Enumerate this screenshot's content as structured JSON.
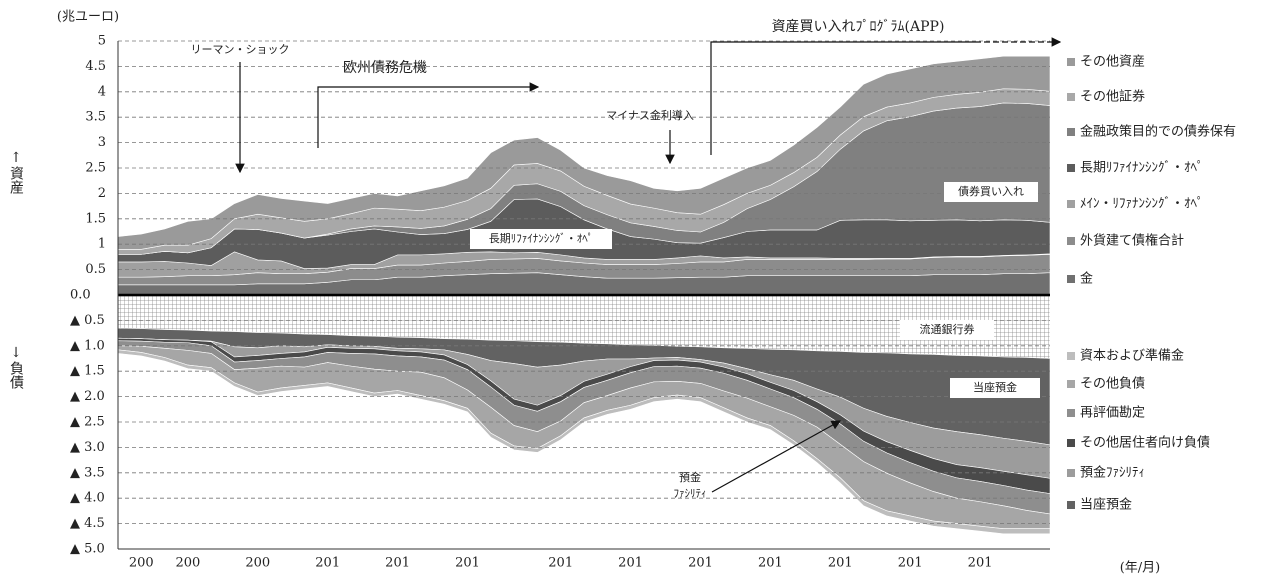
{
  "chart_data": {
    "type": "stacked_area",
    "unit_label": "(兆ユーロ)",
    "x_label": "(年/月)",
    "assets_label": "↑資産",
    "liabilities_label": "↓負債",
    "categories": [
      null,
      "200",
      null,
      "200",
      null,
      null,
      "200",
      null,
      null,
      "201",
      null,
      null,
      "201",
      null,
      null,
      "201",
      null,
      null,
      null,
      "201",
      null,
      null,
      "201",
      null,
      null,
      "201",
      null,
      null,
      "201",
      null,
      null,
      "201",
      null,
      null,
      "201",
      null,
      null,
      "201",
      null,
      null,
      null
    ],
    "ylim": [
      -5,
      5
    ],
    "yticks": [
      5,
      4.5,
      4,
      3.5,
      3,
      2.5,
      2,
      1.5,
      1,
      0.5,
      {
        "value": 0,
        "label": "0.0"
      },
      {
        "value": -0.5,
        "label": "▲ 0.5"
      },
      {
        "value": -1,
        "label": "▲ 1.0"
      },
      {
        "value": -1.5,
        "label": "▲ 1.5"
      },
      {
        "value": -2,
        "label": "▲ 2.0"
      },
      {
        "value": -2.5,
        "label": "▲ 2.5"
      },
      {
        "value": -3,
        "label": "▲ 3.0"
      },
      {
        "value": -3.5,
        "label": "▲ 3.5"
      },
      {
        "value": -4,
        "label": "▲ 4.0"
      },
      {
        "value": -4.5,
        "label": "▲ 4.5"
      },
      {
        "value": -5,
        "label": "▲ 5.0"
      }
    ],
    "grid": true,
    "series": [
      {
        "name": "金",
        "color": "#707070",
        "values": [
          0.2,
          0.2,
          0.2,
          0.2,
          0.2,
          0.2,
          0.22,
          0.22,
          0.22,
          0.25,
          0.3,
          0.3,
          0.35,
          0.35,
          0.38,
          0.4,
          0.42,
          0.43,
          0.44,
          0.4,
          0.36,
          0.33,
          0.33,
          0.33,
          0.34,
          0.35,
          0.35,
          0.38,
          0.38,
          0.38,
          0.38,
          0.38,
          0.38,
          0.38,
          0.38,
          0.4,
          0.4,
          0.4,
          0.42,
          0.42,
          0.44
        ]
      },
      {
        "name": "外貨建て債権合計",
        "color": "#8c8c8c",
        "values": [
          0.15,
          0.15,
          0.16,
          0.18,
          0.18,
          0.2,
          0.22,
          0.2,
          0.2,
          0.2,
          0.22,
          0.22,
          0.24,
          0.24,
          0.25,
          0.26,
          0.28,
          0.28,
          0.28,
          0.27,
          0.27,
          0.27,
          0.27,
          0.27,
          0.28,
          0.3,
          0.3,
          0.32,
          0.32,
          0.32,
          0.32,
          0.32,
          0.32,
          0.33,
          0.33,
          0.34,
          0.35,
          0.35,
          0.35,
          0.36,
          0.36
        ]
      },
      {
        "name": "ﾒｲﾝ・ﾘﾌｧﾅﾝｼﾝｸﾞ・ｵﾍﾟ",
        "color": "#a0a0a0",
        "values": [
          0.3,
          0.3,
          0.3,
          0.25,
          0.2,
          0.45,
          0.25,
          0.25,
          0.1,
          0.08,
          0.08,
          0.08,
          0.2,
          0.2,
          0.18,
          0.18,
          0.15,
          0.12,
          0.12,
          0.12,
          0.1,
          0.1,
          0.1,
          0.1,
          0.11,
          0.12,
          0.08,
          0.05,
          0.03,
          0.03,
          0.03,
          0.02,
          0.02,
          0.01,
          0.01,
          0.01,
          0.01,
          0.01,
          0.01,
          0.01,
          0.01
        ]
      },
      {
        "name": "長期ﾘﾌｧｲﾅﾝｼﾝｸﾞ・ｵﾍﾟ",
        "color": "#5c5c5c",
        "values": [
          0.15,
          0.15,
          0.2,
          0.2,
          0.35,
          0.45,
          0.6,
          0.55,
          0.6,
          0.65,
          0.65,
          0.7,
          0.45,
          0.4,
          0.4,
          0.45,
          0.6,
          1.05,
          1.05,
          0.95,
          0.75,
          0.6,
          0.45,
          0.4,
          0.3,
          0.25,
          0.4,
          0.5,
          0.55,
          0.55,
          0.55,
          0.75,
          0.76,
          0.76,
          0.74,
          0.72,
          0.72,
          0.7,
          0.7,
          0.68,
          0.62
        ]
      },
      {
        "name": "金融政策目的での債券保有",
        "color": "#808080",
        "values": [
          0,
          0,
          0,
          0,
          0,
          0,
          0,
          0,
          0,
          0.02,
          0.05,
          0.06,
          0.1,
          0.12,
          0.15,
          0.2,
          0.25,
          0.28,
          0.3,
          0.3,
          0.28,
          0.28,
          0.27,
          0.25,
          0.24,
          0.22,
          0.3,
          0.45,
          0.6,
          0.85,
          1.15,
          1.4,
          1.75,
          1.95,
          2.05,
          2.15,
          2.2,
          2.25,
          2.3,
          2.3,
          2.3
        ]
      },
      {
        "name": "その他証券",
        "color": "#a8a8a8",
        "values": [
          0.1,
          0.1,
          0.12,
          0.15,
          0.18,
          0.2,
          0.3,
          0.3,
          0.33,
          0.3,
          0.3,
          0.35,
          0.35,
          0.35,
          0.37,
          0.37,
          0.4,
          0.4,
          0.4,
          0.4,
          0.38,
          0.38,
          0.37,
          0.36,
          0.35,
          0.35,
          0.35,
          0.3,
          0.28,
          0.28,
          0.28,
          0.28,
          0.28,
          0.27,
          0.27,
          0.27,
          0.27,
          0.28,
          0.28,
          0.28,
          0.28
        ]
      },
      {
        "name": "その他資産",
        "color": "#9a9a9a",
        "values": [
          0.25,
          0.3,
          0.32,
          0.47,
          0.39,
          0.3,
          0.39,
          0.38,
          0.4,
          0.3,
          0.3,
          0.29,
          0.26,
          0.39,
          0.42,
          0.44,
          0.7,
          0.49,
          0.51,
          0.41,
          0.36,
          0.39,
          0.46,
          0.39,
          0.43,
          0.51,
          0.52,
          0.5,
          0.49,
          0.54,
          0.59,
          0.55,
          0.64,
          0.65,
          0.67,
          0.66,
          0.65,
          0.66,
          0.64,
          0.65,
          0.69
        ]
      }
    ],
    "banknotes": {
      "name": "流通銀行券",
      "values": [
        -0.65,
        -0.66,
        -0.68,
        -0.69,
        -0.71,
        -0.72,
        -0.74,
        -0.75,
        -0.77,
        -0.78,
        -0.8,
        -0.81,
        -0.83,
        -0.84,
        -0.86,
        -0.87,
        -0.89,
        -0.9,
        -0.92,
        -0.93,
        -0.95,
        -0.96,
        -0.98,
        -0.99,
        -1.01,
        -1.02,
        -1.04,
        -1.05,
        -1.07,
        -1.08,
        -1.1,
        -1.11,
        -1.13,
        -1.14,
        -1.16,
        -1.17,
        -1.19,
        -1.2,
        -1.22,
        -1.23,
        -1.25
      ]
    },
    "liabilities": [
      {
        "name": "当座預金",
        "color": "#626262",
        "values": [
          -0.2,
          -0.2,
          -0.2,
          -0.2,
          -0.2,
          -0.3,
          -0.3,
          -0.25,
          -0.25,
          -0.2,
          -0.2,
          -0.2,
          -0.22,
          -0.22,
          -0.22,
          -0.3,
          -0.4,
          -0.45,
          -0.5,
          -0.45,
          -0.35,
          -0.3,
          -0.28,
          -0.25,
          -0.22,
          -0.25,
          -0.3,
          -0.4,
          -0.5,
          -0.6,
          -0.75,
          -0.9,
          -1.1,
          -1.25,
          -1.35,
          -1.45,
          -1.5,
          -1.55,
          -1.6,
          -1.65,
          -1.7
        ]
      },
      {
        "name": "預金ﾌｧｼﾘﾃｨ",
        "color": "#9c9c9c",
        "values": [
          0,
          0,
          0,
          0,
          -0.01,
          -0.2,
          -0.15,
          -0.15,
          -0.1,
          -0.05,
          -0.05,
          -0.05,
          -0.05,
          -0.06,
          -0.1,
          -0.2,
          -0.4,
          -0.7,
          -0.75,
          -0.6,
          -0.4,
          -0.3,
          -0.15,
          -0.05,
          -0.05,
          -0.05,
          -0.08,
          -0.1,
          -0.15,
          -0.2,
          -0.25,
          -0.35,
          -0.45,
          -0.5,
          -0.55,
          -0.6,
          -0.65,
          -0.65,
          -0.65,
          -0.66,
          -0.66
        ]
      },
      {
        "name": "その他居住者向け負債",
        "color": "#4a4a4a",
        "values": [
          -0.05,
          -0.05,
          -0.05,
          -0.05,
          -0.08,
          -0.1,
          -0.1,
          -0.1,
          -0.1,
          -0.1,
          -0.1,
          -0.1,
          -0.1,
          -0.1,
          -0.1,
          -0.1,
          -0.12,
          -0.12,
          -0.12,
          -0.12,
          -0.12,
          -0.12,
          -0.12,
          -0.12,
          -0.12,
          -0.12,
          -0.12,
          -0.13,
          -0.13,
          -0.14,
          -0.15,
          -0.18,
          -0.2,
          -0.22,
          -0.24,
          -0.25,
          -0.26,
          -0.27,
          -0.28,
          -0.3,
          -0.3
        ]
      },
      {
        "name": "再評価勘定",
        "color": "#8e8e8e",
        "values": [
          -0.1,
          -0.1,
          -0.12,
          -0.15,
          -0.15,
          -0.15,
          -0.15,
          -0.15,
          -0.2,
          -0.2,
          -0.25,
          -0.3,
          -0.3,
          -0.3,
          -0.35,
          -0.4,
          -0.4,
          -0.4,
          -0.4,
          -0.38,
          -0.3,
          -0.3,
          -0.3,
          -0.3,
          -0.3,
          -0.3,
          -0.35,
          -0.35,
          -0.35,
          -0.35,
          -0.35,
          -0.4,
          -0.4,
          -0.4,
          -0.4,
          -0.4,
          -0.4,
          -0.4,
          -0.4,
          -0.4,
          -0.4
        ]
      },
      {
        "name": "その他負債",
        "color": "#a6a6a6",
        "values": [
          -0.08,
          -0.12,
          -0.18,
          -0.29,
          -0.28,
          -0.26,
          -0.47,
          -0.43,
          -0.36,
          -0.4,
          -0.43,
          -0.47,
          -0.38,
          -0.46,
          -0.45,
          -0.36,
          -0.51,
          -0.4,
          -0.33,
          -0.29,
          -0.3,
          -0.29,
          -0.34,
          -0.31,
          -0.27,
          -0.28,
          -0.33,
          -0.39,
          -0.37,
          -0.5,
          -0.62,
          -0.66,
          -0.77,
          -0.74,
          -0.65,
          -0.58,
          -0.5,
          -0.48,
          -0.45,
          -0.36,
          -0.29
        ]
      },
      {
        "name": "資本および準備金",
        "color": "#bdbdbd",
        "values": [
          -0.07,
          -0.07,
          -0.07,
          -0.07,
          -0.07,
          -0.07,
          -0.07,
          -0.07,
          -0.07,
          -0.07,
          -0.07,
          -0.07,
          -0.07,
          -0.07,
          -0.07,
          -0.07,
          -0.08,
          -0.08,
          -0.08,
          -0.08,
          -0.08,
          -0.08,
          -0.08,
          -0.08,
          -0.08,
          -0.08,
          -0.08,
          -0.08,
          -0.08,
          -0.08,
          -0.08,
          -0.1,
          -0.1,
          -0.1,
          -0.1,
          -0.1,
          -0.1,
          -0.1,
          -0.1,
          -0.1,
          -0.1
        ]
      }
    ],
    "annotations": [
      "リーマン・ショック",
      "欧州債務危機",
      "マイナス金利導入",
      "資産買い入れﾌﾟﾛｸﾞﾗﾑ(APP)",
      "長期ﾘﾌｧｲﾅﾝｼﾝｸﾞ・ｵﾍﾟ",
      "債券買い入れ",
      "当座預金",
      "預金",
      "ﾌｧｼﾘﾃｨ"
    ]
  }
}
